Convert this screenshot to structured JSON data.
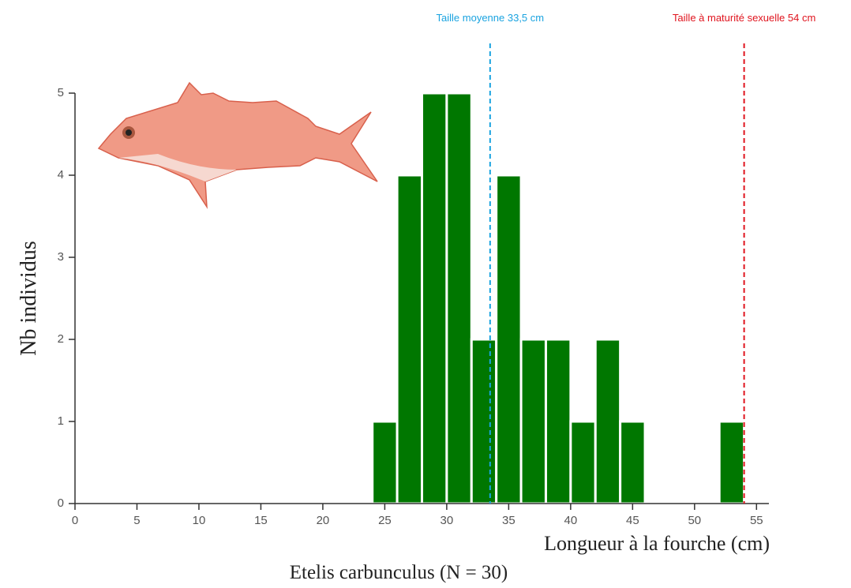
{
  "chart_data": {
    "type": "histogram",
    "title": "Etelis carbunculus (N = 30)",
    "xlabel": "Longueur à la fourche (cm)",
    "ylabel": "Nb individus",
    "bins": [
      24,
      26,
      28,
      30,
      32,
      34,
      36,
      38,
      40,
      42,
      44,
      46,
      48,
      50,
      52,
      54
    ],
    "values": [
      1,
      4,
      5,
      5,
      2,
      4,
      2,
      2,
      1,
      2,
      1,
      0,
      0,
      0,
      1
    ],
    "color": "#007700",
    "xlim": [
      0,
      56
    ],
    "ylim": [
      0,
      5
    ],
    "xticks": [
      0,
      5,
      10,
      15,
      20,
      25,
      30,
      35,
      40,
      45,
      50,
      55
    ],
    "yticks": [
      0,
      1,
      2,
      3,
      4,
      5
    ],
    "annotations": [
      {
        "label": "Taille moyenne 33,5 cm",
        "x": 33.5,
        "color": "#1aa3e0"
      },
      {
        "label": "Taille à maturité sexuelle 54 cm",
        "x": 54,
        "color": "#e0141e"
      }
    ]
  }
}
